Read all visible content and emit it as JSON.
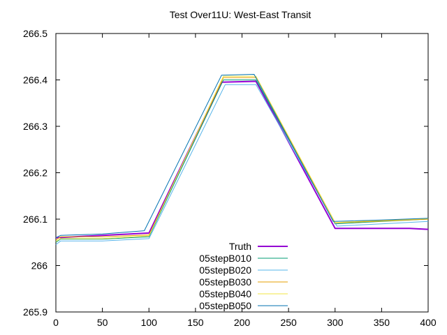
{
  "chart_data": {
    "type": "line",
    "title": "Test Over11U: West-East Transit",
    "xlabel": "",
    "ylabel": "",
    "xlim": [
      0,
      400
    ],
    "ylim": [
      265.9,
      266.5
    ],
    "xticks": [
      0,
      50,
      100,
      150,
      200,
      250,
      300,
      350,
      400
    ],
    "yticks": [
      265.9,
      266,
      266.1,
      266.2,
      266.3,
      266.4,
      266.5
    ],
    "xtick_labels": [
      "0",
      "50",
      "100",
      "150",
      "200",
      "250",
      "300",
      "350",
      "400"
    ],
    "ytick_labels": [
      "265.9",
      "266",
      "266.1",
      "266.2",
      "266.3",
      "266.4",
      "266.5"
    ],
    "grid": false,
    "legend_position": "bottom-center",
    "series": [
      {
        "name": "Truth",
        "color": "#9400d3",
        "x": [
          0,
          100,
          178,
          215,
          300,
          380,
          400
        ],
        "y": [
          266.06,
          266.07,
          266.395,
          266.397,
          266.08,
          266.08,
          266.078
        ]
      },
      {
        "name": "05stepB010",
        "color": "#009e73",
        "x": [
          0,
          5,
          50,
          100,
          180,
          215,
          300,
          350,
          400
        ],
        "y": [
          266.05,
          266.057,
          266.057,
          266.062,
          266.4,
          266.4,
          266.09,
          266.095,
          266.1
        ]
      },
      {
        "name": "05stepB020",
        "color": "#56b4e9",
        "x": [
          0,
          5,
          50,
          100,
          182,
          215,
          302,
          350,
          400
        ],
        "y": [
          266.045,
          266.053,
          266.053,
          266.058,
          266.39,
          266.39,
          266.085,
          266.09,
          266.095
        ]
      },
      {
        "name": "05stepB030",
        "color": "#e69f00",
        "x": [
          0,
          5,
          50,
          100,
          180,
          215,
          300,
          350,
          400
        ],
        "y": [
          266.055,
          266.062,
          266.062,
          266.066,
          266.405,
          266.405,
          266.092,
          266.096,
          266.1
        ]
      },
      {
        "name": "05stepB040",
        "color": "#f0e442",
        "x": [
          0,
          5,
          50,
          100,
          180,
          215,
          300,
          350,
          400
        ],
        "y": [
          266.052,
          266.058,
          266.058,
          266.064,
          266.408,
          266.408,
          266.093,
          266.097,
          266.101
        ]
      },
      {
        "name": "05stepB050",
        "color": "#0072b2",
        "x": [
          0,
          5,
          50,
          95,
          178,
          213,
          298,
          350,
          400
        ],
        "y": [
          266.06,
          266.065,
          266.068,
          266.075,
          266.41,
          266.412,
          266.095,
          266.098,
          266.102
        ]
      }
    ]
  }
}
